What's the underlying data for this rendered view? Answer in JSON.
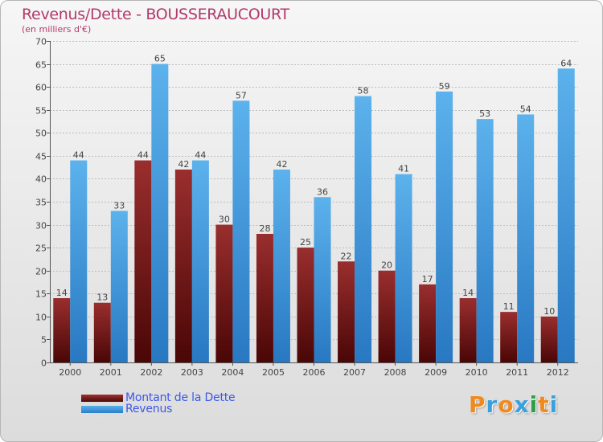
{
  "chart_data": {
    "type": "bar",
    "title": "Revenus/Dette - BOUSSERAUCOURT",
    "subtitle": "(en milliers d'€)",
    "categories": [
      "2000",
      "2001",
      "2002",
      "2003",
      "2004",
      "2005",
      "2006",
      "2007",
      "2008",
      "2009",
      "2010",
      "2011",
      "2012"
    ],
    "series": [
      {
        "name": "Montant de la Dette",
        "color": "#7a1a1a",
        "values": [
          14,
          13,
          44,
          42,
          30,
          28,
          25,
          22,
          20,
          17,
          14,
          11,
          10
        ]
      },
      {
        "name": "Revenus",
        "color": "#3d98dc",
        "values": [
          44,
          33,
          65,
          44,
          57,
          42,
          36,
          58,
          41,
          59,
          53,
          54,
          64
        ]
      }
    ],
    "ylim": [
      0,
      70
    ],
    "yticks": [
      0,
      5,
      10,
      15,
      20,
      25,
      30,
      35,
      40,
      45,
      50,
      55,
      60,
      65,
      70
    ],
    "grid": true,
    "legend_position": "bottom-left"
  },
  "logo": {
    "letters": [
      "P",
      "r",
      "o",
      "x",
      "i",
      "t",
      "i"
    ],
    "colors": [
      "#f08a1e",
      "#3aa0dc",
      "#f08a1e",
      "#3aa0dc",
      "#2f9e44",
      "#f08a1e",
      "#3aa0dc"
    ]
  }
}
